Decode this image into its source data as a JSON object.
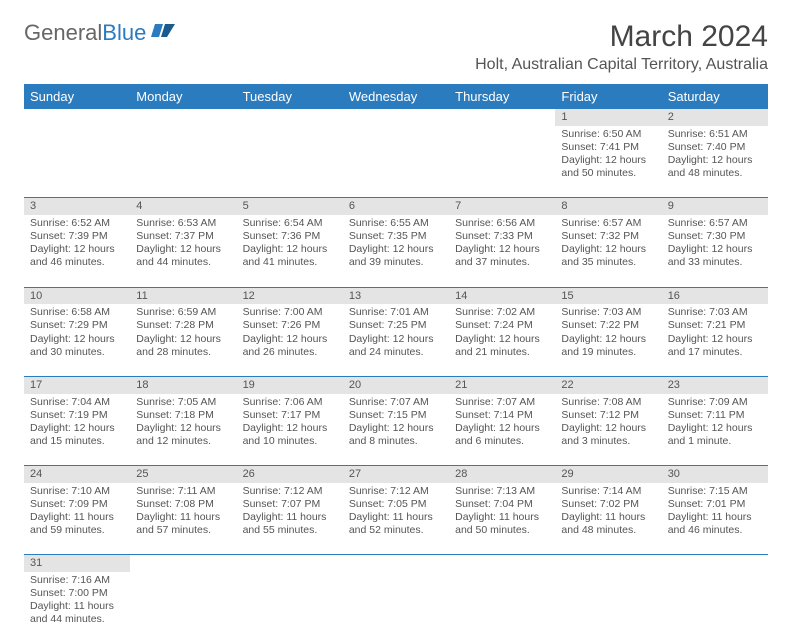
{
  "logo": {
    "text_a": "General",
    "text_b": "Blue"
  },
  "title": "March 2024",
  "location": "Holt, Australian Capital Territory, Australia",
  "colors": {
    "header_bg": "#2b7bbf",
    "header_fg": "#ffffff",
    "daynum_bg": "#e4e4e4",
    "border": "#2b7bbf",
    "text": "#555555",
    "bg": "#ffffff"
  },
  "day_headers": [
    "Sunday",
    "Monday",
    "Tuesday",
    "Wednesday",
    "Thursday",
    "Friday",
    "Saturday"
  ],
  "weeks": [
    [
      null,
      null,
      null,
      null,
      null,
      {
        "n": "1",
        "sr": "6:50 AM",
        "ss": "7:41 PM",
        "dl": "12 hours and 50 minutes."
      },
      {
        "n": "2",
        "sr": "6:51 AM",
        "ss": "7:40 PM",
        "dl": "12 hours and 48 minutes."
      }
    ],
    [
      {
        "n": "3",
        "sr": "6:52 AM",
        "ss": "7:39 PM",
        "dl": "12 hours and 46 minutes."
      },
      {
        "n": "4",
        "sr": "6:53 AM",
        "ss": "7:37 PM",
        "dl": "12 hours and 44 minutes."
      },
      {
        "n": "5",
        "sr": "6:54 AM",
        "ss": "7:36 PM",
        "dl": "12 hours and 41 minutes."
      },
      {
        "n": "6",
        "sr": "6:55 AM",
        "ss": "7:35 PM",
        "dl": "12 hours and 39 minutes."
      },
      {
        "n": "7",
        "sr": "6:56 AM",
        "ss": "7:33 PM",
        "dl": "12 hours and 37 minutes."
      },
      {
        "n": "8",
        "sr": "6:57 AM",
        "ss": "7:32 PM",
        "dl": "12 hours and 35 minutes."
      },
      {
        "n": "9",
        "sr": "6:57 AM",
        "ss": "7:30 PM",
        "dl": "12 hours and 33 minutes."
      }
    ],
    [
      {
        "n": "10",
        "sr": "6:58 AM",
        "ss": "7:29 PM",
        "dl": "12 hours and 30 minutes."
      },
      {
        "n": "11",
        "sr": "6:59 AM",
        "ss": "7:28 PM",
        "dl": "12 hours and 28 minutes."
      },
      {
        "n": "12",
        "sr": "7:00 AM",
        "ss": "7:26 PM",
        "dl": "12 hours and 26 minutes."
      },
      {
        "n": "13",
        "sr": "7:01 AM",
        "ss": "7:25 PM",
        "dl": "12 hours and 24 minutes."
      },
      {
        "n": "14",
        "sr": "7:02 AM",
        "ss": "7:24 PM",
        "dl": "12 hours and 21 minutes."
      },
      {
        "n": "15",
        "sr": "7:03 AM",
        "ss": "7:22 PM",
        "dl": "12 hours and 19 minutes."
      },
      {
        "n": "16",
        "sr": "7:03 AM",
        "ss": "7:21 PM",
        "dl": "12 hours and 17 minutes."
      }
    ],
    [
      {
        "n": "17",
        "sr": "7:04 AM",
        "ss": "7:19 PM",
        "dl": "12 hours and 15 minutes."
      },
      {
        "n": "18",
        "sr": "7:05 AM",
        "ss": "7:18 PM",
        "dl": "12 hours and 12 minutes."
      },
      {
        "n": "19",
        "sr": "7:06 AM",
        "ss": "7:17 PM",
        "dl": "12 hours and 10 minutes."
      },
      {
        "n": "20",
        "sr": "7:07 AM",
        "ss": "7:15 PM",
        "dl": "12 hours and 8 minutes."
      },
      {
        "n": "21",
        "sr": "7:07 AM",
        "ss": "7:14 PM",
        "dl": "12 hours and 6 minutes."
      },
      {
        "n": "22",
        "sr": "7:08 AM",
        "ss": "7:12 PM",
        "dl": "12 hours and 3 minutes."
      },
      {
        "n": "23",
        "sr": "7:09 AM",
        "ss": "7:11 PM",
        "dl": "12 hours and 1 minute."
      }
    ],
    [
      {
        "n": "24",
        "sr": "7:10 AM",
        "ss": "7:09 PM",
        "dl": "11 hours and 59 minutes."
      },
      {
        "n": "25",
        "sr": "7:11 AM",
        "ss": "7:08 PM",
        "dl": "11 hours and 57 minutes."
      },
      {
        "n": "26",
        "sr": "7:12 AM",
        "ss": "7:07 PM",
        "dl": "11 hours and 55 minutes."
      },
      {
        "n": "27",
        "sr": "7:12 AM",
        "ss": "7:05 PM",
        "dl": "11 hours and 52 minutes."
      },
      {
        "n": "28",
        "sr": "7:13 AM",
        "ss": "7:04 PM",
        "dl": "11 hours and 50 minutes."
      },
      {
        "n": "29",
        "sr": "7:14 AM",
        "ss": "7:02 PM",
        "dl": "11 hours and 48 minutes."
      },
      {
        "n": "30",
        "sr": "7:15 AM",
        "ss": "7:01 PM",
        "dl": "11 hours and 46 minutes."
      }
    ],
    [
      {
        "n": "31",
        "sr": "7:16 AM",
        "ss": "7:00 PM",
        "dl": "11 hours and 44 minutes."
      },
      null,
      null,
      null,
      null,
      null,
      null
    ]
  ],
  "labels": {
    "sunrise": "Sunrise: ",
    "sunset": "Sunset: ",
    "daylight": "Daylight: "
  }
}
